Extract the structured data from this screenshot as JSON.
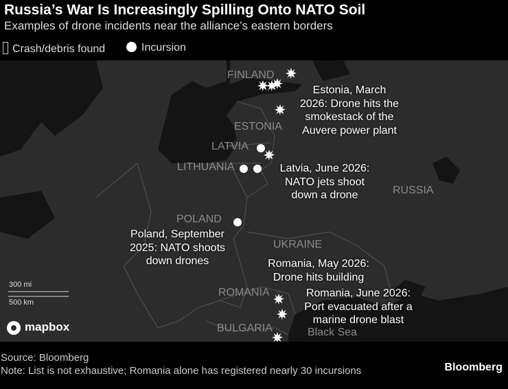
{
  "header": {
    "title": "Russia’s War Is Increasingly Spilling Onto NATO Soil",
    "subtitle": "Examples of drone incidents near the alliance’s eastern borders"
  },
  "legend": [
    "Crash/debris found",
    "Incursion"
  ],
  "map": {
    "labels": [
      "FINLAND",
      "ESTONIA",
      "LATVIA",
      "LITHUANIA",
      "POLAND",
      "UKRAINE",
      "RUSSIA",
      "ROMANIA",
      "BULGARIA",
      "Black Sea"
    ],
    "annotations": [
      "Estonia, March 2026: Drone hits the smokestack of the Auvere power plant",
      "Latvia, June 2026: NATO jets shoot down a drone",
      "Poland, September 2025: NATO shoots down drones",
      "Romania, May 2026: Drone hits building",
      "Romania, June 2026: Port evacuated after a marine drone blast"
    ],
    "scale": [
      "300 mi",
      "500 km"
    ],
    "attribution": "mapbox"
  },
  "footer": {
    "source": "Source: Bloomberg",
    "note": "Note: List is not exhaustive; Romania alone has registered nearly 30 incursions",
    "brand": "Bloomberg"
  }
}
